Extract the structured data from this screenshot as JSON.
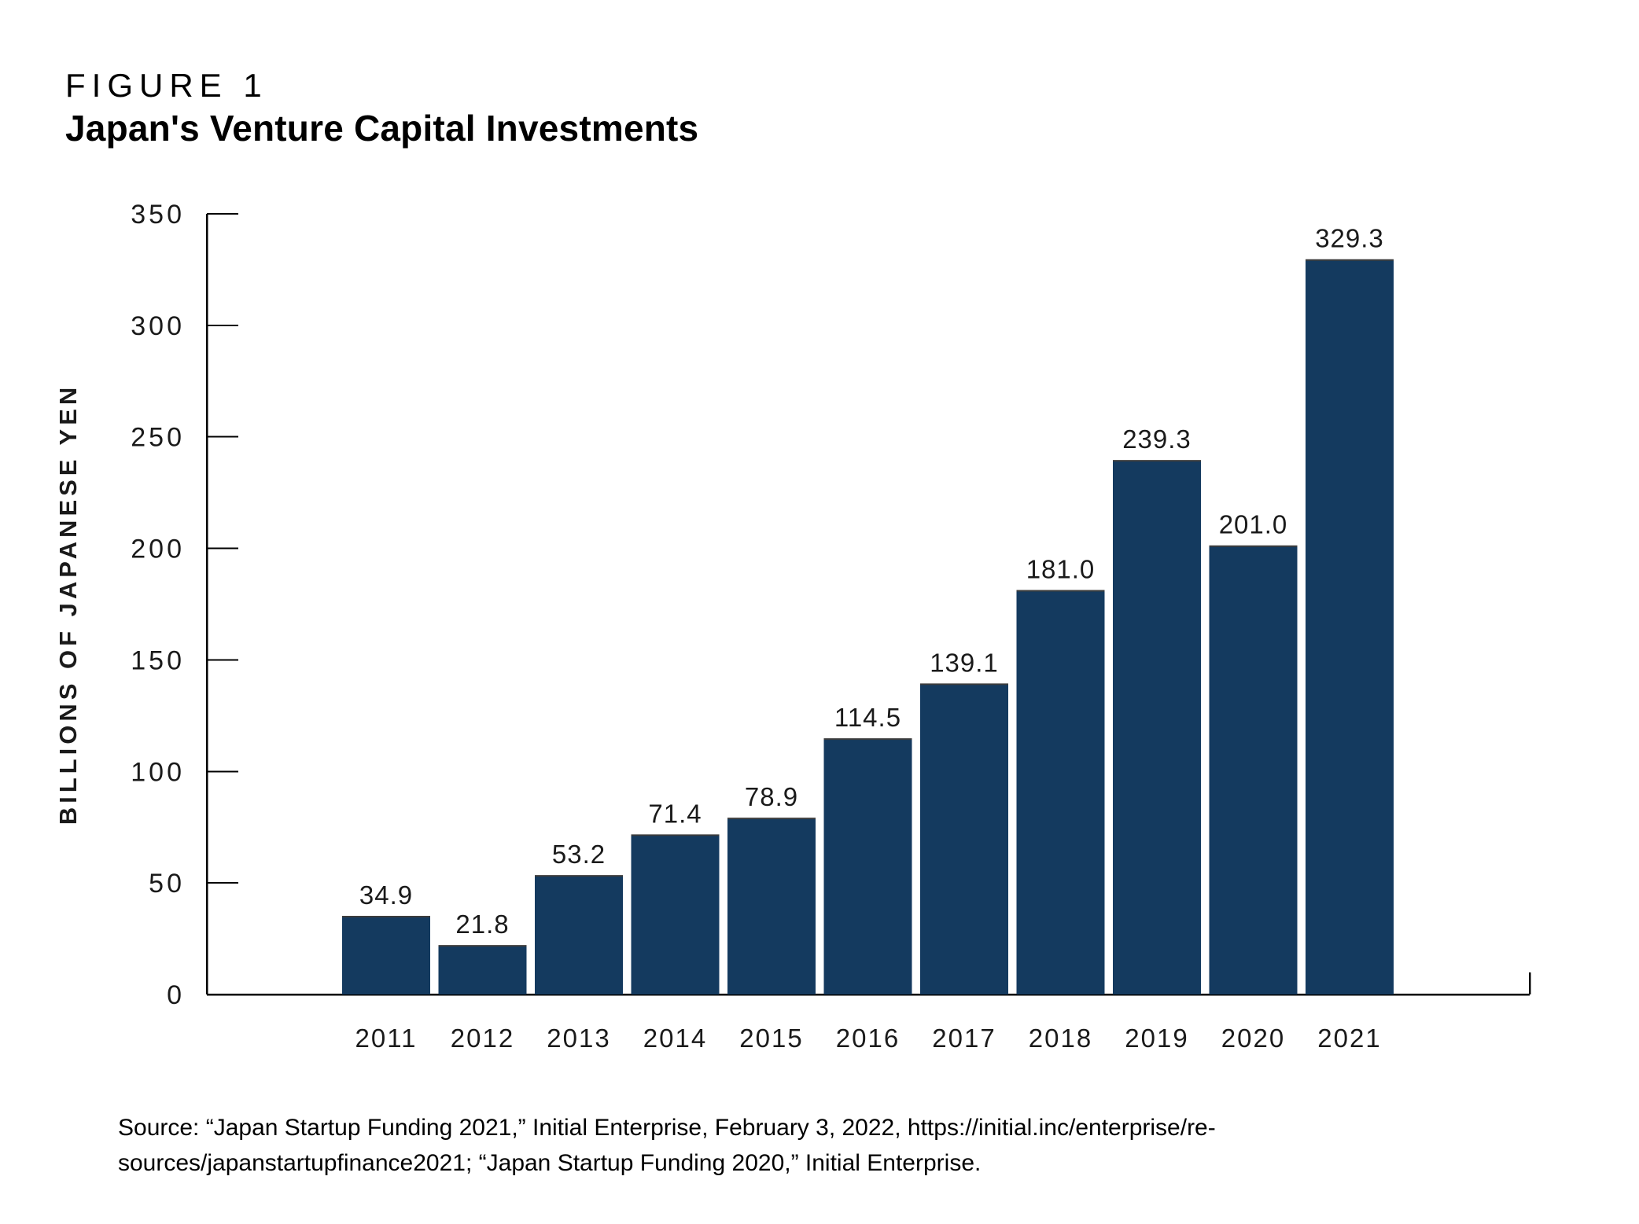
{
  "page": {
    "background": "#ffffff"
  },
  "header": {
    "figure_label": "FIGURE 1",
    "title": "Japan's Venture Capital Investments"
  },
  "chart_data": {
    "type": "bar",
    "title": "Japan's Venture Capital Investments",
    "categories": [
      "2011",
      "2012",
      "2013",
      "2014",
      "2015",
      "2016",
      "2017",
      "2018",
      "2019",
      "2020",
      "2021"
    ],
    "values": [
      34.9,
      21.8,
      53.2,
      71.4,
      78.9,
      114.5,
      139.1,
      181.0,
      239.3,
      201.0,
      329.3
    ],
    "value_labels": [
      "34.9",
      "21.8",
      "53.2",
      "71.4",
      "78.9",
      "114.5",
      "139.1",
      "181.0",
      "239.3",
      "201.0",
      "329.3"
    ],
    "xlabel": "",
    "ylabel": "BILLIONS OF JAPANESE YEN",
    "ylim": [
      0,
      350
    ],
    "yticks": [
      0,
      50,
      100,
      150,
      200,
      250,
      300,
      350
    ],
    "grid": false,
    "legend": false,
    "bar_color": "#143A5F"
  },
  "colors": {
    "bar": "#143A5F",
    "bar_top_edge": "#3d3d3d",
    "axis": "#000000",
    "text": "#1a1a1a"
  },
  "source": {
    "line1": "Source: “Japan Startup Funding 2021,” Initial Enterprise, February 3, 2022, https://initial.inc/enterprise/re-",
    "line2": "sources/japanstartupfinance2021; “Japan Startup Funding 2020,” Initial Enterprise."
  }
}
